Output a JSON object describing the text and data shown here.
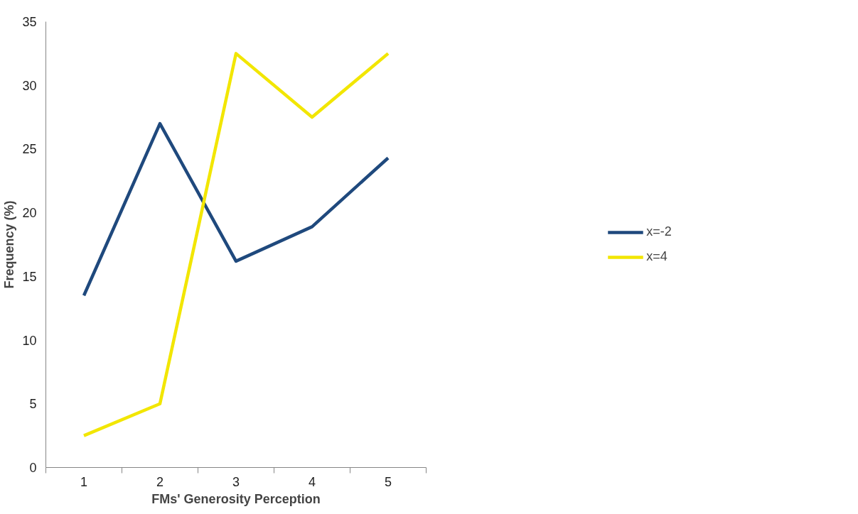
{
  "chart_data": {
    "type": "line",
    "xlabel": "FMs' Generosity Perception",
    "ylabel": "Frequency (%)",
    "categories": [
      "1",
      "2",
      "3",
      "4",
      "5"
    ],
    "series": [
      {
        "name": "x=-2",
        "color": "#1f497d",
        "values": [
          13.5,
          27.0,
          16.2,
          18.9,
          24.3
        ]
      },
      {
        "name": "x=4",
        "color": "#f2e600",
        "values": [
          2.5,
          5.0,
          32.5,
          27.5,
          32.5
        ]
      }
    ],
    "ylim": [
      0,
      35
    ],
    "yticks": [
      0,
      5,
      10,
      15,
      20,
      25,
      30,
      35
    ],
    "grid": false,
    "legend": "right",
    "marker": "none",
    "line_style": "solid"
  }
}
